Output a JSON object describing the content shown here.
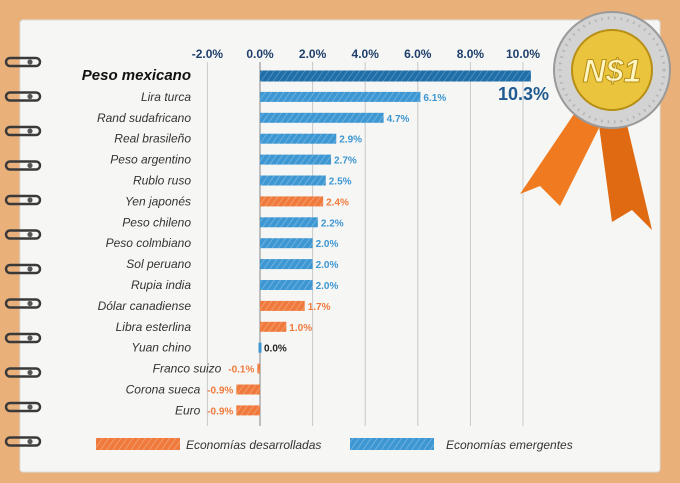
{
  "chart_data": {
    "type": "bar",
    "orientation": "horizontal",
    "categories": [
      "Peso mexicano",
      "Lira turca",
      "Rand sudafricano",
      "Real brasileño",
      "Peso argentino",
      "Rublo ruso",
      "Yen japonés",
      "Peso chileno",
      "Peso colmbiano",
      "Sol peruano",
      "Rupia india",
      "Dólar canadiense",
      "Libra esterlina",
      "Yuan chino",
      "Franco suizo",
      "Corona sueca",
      "Euro"
    ],
    "values": [
      10.3,
      6.1,
      4.7,
      2.9,
      2.7,
      2.5,
      2.4,
      2.2,
      2.0,
      2.0,
      2.0,
      1.7,
      1.0,
      0.0,
      -0.1,
      -0.9,
      -0.9
    ],
    "value_labels": [
      "10.3%",
      "6.1%",
      "4.7%",
      "2.9%",
      "2.7%",
      "2.5%",
      "2.4%",
      "2.2%",
      "2.0%",
      "2.0%",
      "2.0%",
      "1.7%",
      "1.0%",
      "0.0%",
      "-0.1%",
      "-0.9%",
      "-0.9%"
    ],
    "groups": [
      "highlight",
      "emergentes",
      "emergentes",
      "emergentes",
      "emergentes",
      "emergentes",
      "desarrolladas",
      "emergentes",
      "emergentes",
      "emergentes",
      "emergentes",
      "desarrolladas",
      "desarrolladas",
      "emergentes",
      "desarrolladas",
      "desarrolladas",
      "desarrolladas"
    ],
    "x_ticks": [
      -2,
      0,
      2,
      4,
      6,
      8,
      10
    ],
    "x_tick_labels": [
      "-2.0%",
      "0.0%",
      "2.0%",
      "4.0%",
      "6.0%",
      "8.0%",
      "10.0%"
    ],
    "xlim": [
      -2.8,
      10.6
    ],
    "grid": true,
    "legend_position": "bottom",
    "legend": [
      {
        "group": "desarrolladas",
        "label": "Economías desarrolladas"
      },
      {
        "group": "emergentes",
        "label": "Economías emergentes"
      }
    ]
  },
  "colors": {
    "desarrolladas": "#ef7a3c",
    "emergentes": "#3d97d3",
    "highlight": "#1f6ea8",
    "paper": "#f6f6f4",
    "grid": "#c9c9c9",
    "medal_silver": "#cfcfcf",
    "medal_gold": "#e9c23a",
    "ribbon": "#f07a1f"
  },
  "medal": {
    "text": "N$1",
    "icon": "peso-coin-icon"
  }
}
